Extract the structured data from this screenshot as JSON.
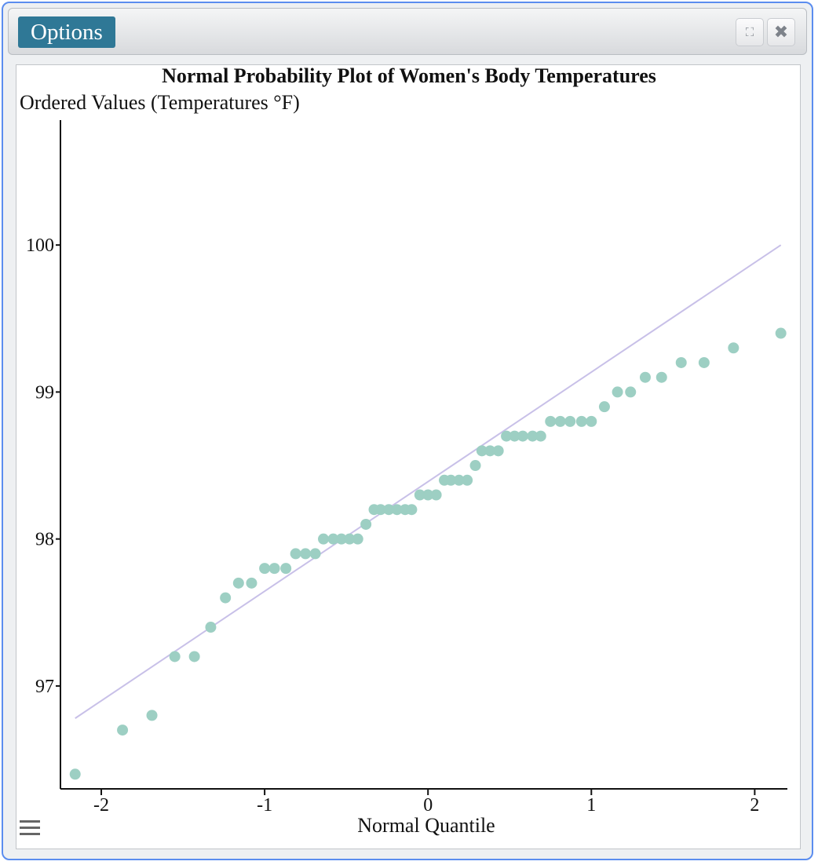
{
  "toolbar": {
    "options_label": "Options",
    "expand_icon": "expand-icon",
    "close_icon": "close-icon",
    "expand_glyph": "⛶",
    "close_glyph": "✖"
  },
  "plot_menu_icon": "hamburger-menu-icon",
  "colors": {
    "points": "#9dcfc3",
    "fit_line": "#c8c0e8",
    "options_button": "#2f7896",
    "window_border": "#5b8def"
  },
  "chart_data": {
    "type": "scatter",
    "title": "Normal Probability Plot of Women's Body Temperatures",
    "xlabel": "Normal Quantile",
    "ylabel": "Ordered Values (Temperatures °F)",
    "xlim": [
      -2.25,
      2.2
    ],
    "ylim": [
      96.3,
      100.85
    ],
    "x_ticks": [
      -2,
      -1,
      0,
      1,
      2
    ],
    "x_tick_labels": [
      "-2",
      "-1",
      "0",
      "1",
      "2"
    ],
    "y_ticks": [
      97,
      98,
      99,
      100
    ],
    "y_tick_labels": [
      "97",
      "98",
      "99",
      "100"
    ],
    "fit_line": {
      "x": [
        -2.16,
        2.16
      ],
      "y": [
        96.78,
        100.0
      ]
    },
    "points": {
      "x": [
        -2.16,
        -1.87,
        -1.69,
        -1.55,
        -1.43,
        -1.33,
        -1.24,
        -1.16,
        -1.08,
        -1.0,
        -0.94,
        -0.87,
        -0.81,
        -0.75,
        -0.69,
        -0.64,
        -0.58,
        -0.53,
        -0.48,
        -0.43,
        -0.38,
        -0.33,
        -0.29,
        -0.24,
        -0.19,
        -0.14,
        -0.1,
        -0.05,
        0.0,
        0.05,
        0.1,
        0.14,
        0.19,
        0.24,
        0.29,
        0.33,
        0.38,
        0.43,
        0.48,
        0.53,
        0.58,
        0.64,
        0.69,
        0.75,
        0.81,
        0.87,
        0.94,
        1.0,
        1.08,
        1.16,
        1.24,
        1.33,
        1.43,
        1.55,
        1.69,
        1.87,
        2.16
      ],
      "y": [
        96.4,
        96.7,
        96.8,
        97.2,
        97.2,
        97.4,
        97.6,
        97.7,
        97.7,
        97.8,
        97.8,
        97.8,
        97.9,
        97.9,
        97.9,
        98.0,
        98.0,
        98.0,
        98.0,
        98.0,
        98.1,
        98.2,
        98.2,
        98.2,
        98.2,
        98.2,
        98.2,
        98.3,
        98.3,
        98.3,
        98.4,
        98.4,
        98.4,
        98.4,
        98.5,
        98.6,
        98.6,
        98.6,
        98.7,
        98.7,
        98.7,
        98.7,
        98.7,
        98.8,
        98.8,
        98.8,
        98.8,
        98.8,
        98.9,
        99.0,
        99.0,
        99.1,
        99.1,
        99.2,
        99.2,
        99.3,
        99.4
      ]
    }
  }
}
